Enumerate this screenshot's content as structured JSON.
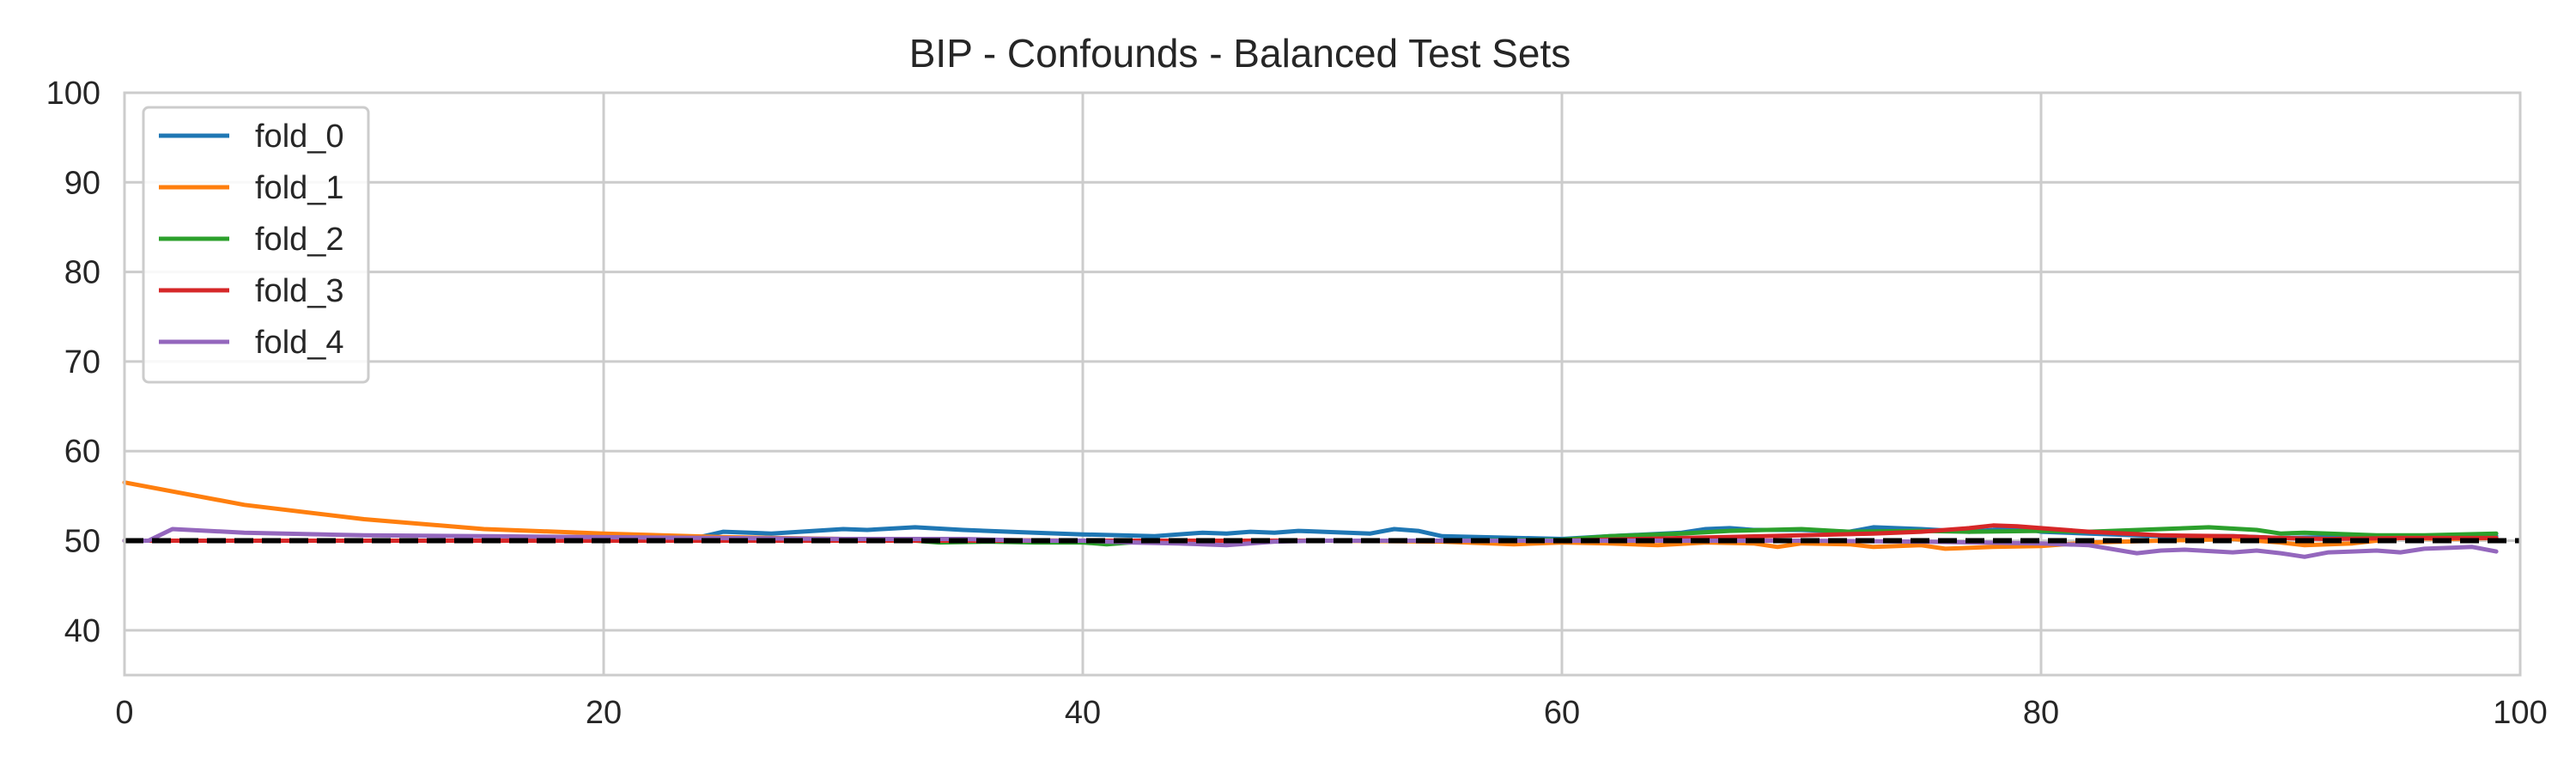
{
  "chart_data": {
    "type": "line",
    "title": "BIP - Confounds - Balanced Test Sets",
    "xlabel": "",
    "ylabel": "",
    "xlim": [
      0,
      100
    ],
    "ylim": [
      35,
      100
    ],
    "x_ticks": [
      0,
      20,
      40,
      60,
      80,
      100
    ],
    "y_ticks": [
      40,
      50,
      60,
      70,
      80,
      90,
      100
    ],
    "grid": true,
    "legend_position": "top-left",
    "reference_line": {
      "y": 50,
      "style": "dashed",
      "color": "#000000"
    },
    "series": [
      {
        "name": "fold_0",
        "color": "#1f77b4",
        "x": [
          0,
          5,
          10,
          15,
          20,
          22,
          24,
          25,
          27,
          30,
          31,
          33,
          35,
          38,
          40,
          43,
          45,
          46,
          47,
          48,
          49,
          50,
          52,
          53,
          54,
          55,
          60,
          62,
          65,
          66,
          67,
          68,
          70,
          72,
          73,
          75,
          77,
          78,
          79,
          80,
          82,
          85,
          88,
          90,
          92,
          95,
          99
        ],
        "values": [
          50.0,
          50.0,
          50.0,
          50.0,
          50.0,
          50.2,
          50.4,
          51.0,
          50.8,
          51.3,
          51.2,
          51.5,
          51.2,
          50.9,
          50.7,
          50.5,
          50.9,
          50.8,
          51.0,
          50.9,
          51.1,
          51.0,
          50.8,
          51.3,
          51.1,
          50.5,
          50.2,
          50.5,
          50.9,
          51.3,
          51.4,
          51.2,
          51.2,
          51.0,
          51.5,
          51.3,
          51.0,
          51.2,
          51.5,
          51.0,
          50.8,
          50.5,
          50.5,
          50.3,
          50.4,
          50.4,
          50.5
        ]
      },
      {
        "name": "fold_1",
        "color": "#ff7f0e",
        "x": [
          0,
          5,
          10,
          15,
          20,
          25,
          30,
          35,
          40,
          45,
          50,
          55,
          58,
          60,
          62,
          64,
          66,
          68,
          69,
          70,
          72,
          73,
          75,
          76,
          78,
          80,
          82,
          85,
          88,
          90,
          91,
          93,
          95,
          97,
          99
        ],
        "values": [
          56.5,
          54.0,
          52.4,
          51.3,
          50.8,
          50.4,
          50.2,
          50.1,
          50.0,
          50.0,
          50.0,
          49.9,
          49.6,
          49.8,
          49.7,
          49.5,
          49.8,
          49.7,
          49.3,
          49.7,
          49.6,
          49.3,
          49.5,
          49.1,
          49.3,
          49.4,
          49.8,
          50.0,
          50.2,
          49.8,
          49.5,
          49.7,
          50.3,
          50.2,
          50.3
        ]
      },
      {
        "name": "fold_2",
        "color": "#2ca02c",
        "x": [
          0,
          10,
          20,
          30,
          33,
          34,
          36,
          38,
          40,
          41,
          43,
          45,
          50,
          55,
          60,
          62,
          65,
          67,
          70,
          72,
          75,
          77,
          80,
          82,
          85,
          87,
          89,
          90,
          91,
          92,
          94,
          96,
          99
        ],
        "values": [
          50.0,
          50.0,
          50.0,
          50.0,
          50.0,
          49.8,
          49.9,
          49.8,
          49.8,
          49.6,
          50.0,
          50.0,
          50.0,
          50.0,
          50.1,
          50.5,
          50.8,
          51.1,
          51.3,
          51.0,
          51.1,
          51.0,
          51.1,
          51.0,
          51.3,
          51.5,
          51.2,
          50.8,
          50.9,
          50.8,
          50.6,
          50.6,
          50.8
        ]
      },
      {
        "name": "fold_3",
        "color": "#d62728",
        "x": [
          0,
          10,
          20,
          30,
          40,
          50,
          60,
          65,
          70,
          73,
          75,
          76,
          77,
          78,
          79,
          80,
          82,
          85,
          88,
          90,
          92,
          95,
          99
        ],
        "values": [
          50.0,
          50.0,
          50.0,
          50.0,
          50.0,
          50.0,
          50.0,
          50.3,
          50.6,
          50.8,
          51.0,
          51.2,
          51.4,
          51.7,
          51.6,
          51.4,
          51.0,
          50.6,
          50.5,
          50.3,
          50.2,
          50.3,
          50.3
        ]
      },
      {
        "name": "fold_4",
        "color": "#9467bd",
        "x": [
          0,
          1,
          2,
          5,
          10,
          15,
          20,
          25,
          30,
          35,
          38,
          40,
          42,
          44,
          46,
          48,
          50,
          55,
          60,
          65,
          70,
          75,
          80,
          82,
          84,
          85,
          86,
          88,
          89,
          90,
          91,
          92,
          93,
          94,
          95,
          96,
          97,
          98,
          99
        ],
        "values": [
          50.0,
          50.0,
          51.3,
          50.9,
          50.6,
          50.5,
          50.4,
          50.3,
          50.2,
          50.2,
          50.0,
          50.0,
          49.8,
          49.7,
          49.5,
          49.9,
          50.0,
          50.0,
          50.0,
          50.0,
          50.0,
          49.9,
          49.7,
          49.5,
          48.6,
          48.9,
          49.0,
          48.7,
          48.9,
          48.6,
          48.2,
          48.7,
          48.8,
          48.9,
          48.7,
          49.1,
          49.2,
          49.3,
          48.8
        ]
      }
    ]
  }
}
